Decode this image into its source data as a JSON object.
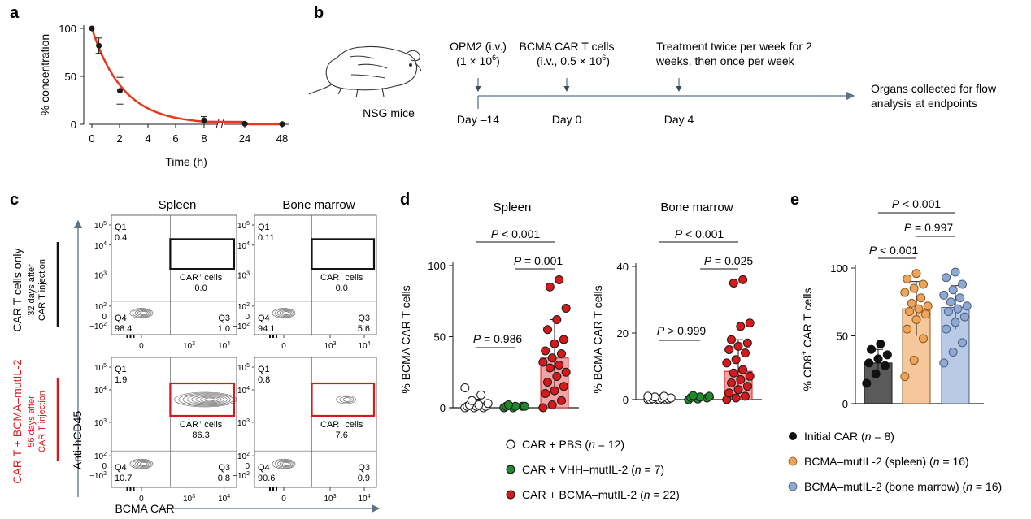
{
  "colors": {
    "ink": "#1a1a1a",
    "curve": "#e8391d",
    "red": "#d7191c",
    "red_fill": "#f4a3a5",
    "green": "#1f8a2b",
    "orange": "#f0a35a",
    "orange_fill": "#f6c79b",
    "blue": "#8fa9d3",
    "blue_fill": "#b8cae6",
    "black_fill": "#5a5a5a",
    "arrow": "#5f7186"
  },
  "panels": {
    "a": {
      "letter": "a",
      "ylabel": "% concentration",
      "xlabel": "Time (h)",
      "xticks": [
        "0",
        "2",
        "4",
        "6",
        "8",
        "24",
        "48"
      ],
      "yticks": [
        "0",
        "50",
        "100"
      ],
      "axis_break": "//"
    },
    "b": {
      "letter": "b",
      "mouse_label": "NSG mice",
      "event1_line1": "OPM2 (i.v.)",
      "event1_line2": "(1 × 10",
      "event1_sup": "6",
      "event1_end": ")",
      "event2_line1": "BCMA CAR T cells",
      "event2_line2": "(i.v., 0.5 × 10",
      "event2_sup": "6",
      "event2_end": ")",
      "event3_line1": "Treatment twice per week for 2",
      "event3_line2": "weeks, then once per week",
      "end_line1": "Organs collected for flow",
      "end_line2": "analysis at endpoints",
      "day1": "Day –14",
      "day2": "Day 0",
      "day3": "Day 4"
    },
    "c": {
      "letter": "c",
      "col1": "Spleen",
      "col2": "Bone marrow",
      "row1_label": "CAR T cells only",
      "row1_sub1": "32 days after",
      "row1_sub2": "CAR T injection",
      "row2_label": "CAR T + BCMA–mutIL-2",
      "row2_sub1": "56 days after",
      "row2_sub2": "CAR T injection",
      "yaxis": "Anti-hCD45",
      "xaxis": "BCMA CAR",
      "quadrant_q1": "Q1",
      "quadrant_q3": "Q3",
      "quadrant_q4": "Q4",
      "gate_label": "CAR",
      "gate_sup": "+",
      "gate_suffix": " cells",
      "tick_labels": {
        "y5": "10",
        "y5e": "5",
        "y4": "10",
        "y4e": "4",
        "y3": "10",
        "y3e": "3",
        "y2": "10",
        "y2e": "2",
        "y0": "0",
        "yn2": "−10",
        "yn2e": "2",
        "x0": "0",
        "x3": "10",
        "x3e": "3",
        "x4": "10",
        "x4e": "4"
      },
      "plots": [
        {
          "q1": "0.4",
          "gate": "0.0",
          "q4": "98.4",
          "q3": "1.0"
        },
        {
          "q1": "0.11",
          "gate": "0.0",
          "q4": "94.1",
          "q3": "5.6"
        },
        {
          "q1": "1.9",
          "gate": "86.3",
          "q4": "10.7",
          "q3": "0.8"
        },
        {
          "q1": "0.8",
          "gate": "7.6",
          "q4": "90.6",
          "q3": "0.9"
        }
      ]
    },
    "d": {
      "letter": "d",
      "left_title": "Spleen",
      "right_title": "Bone marrow",
      "ylabel": "% BCMA CAR T cells",
      "left_yticks": [
        "0",
        "50",
        "100"
      ],
      "right_yticks": [
        "0",
        "20",
        "40"
      ],
      "left_p_top": " < 0.001",
      "left_p_mid": " = 0.001",
      "left_p_low": " = 0.986",
      "right_p_top": " < 0.001",
      "right_p_mid": " = 0.025",
      "right_p_low": " > 0.999",
      "p_letter": "P",
      "legend": [
        {
          "label_pre": "CAR + PBS (",
          "n": "n",
          "label_post": " = 12)"
        },
        {
          "label_pre": "CAR + VHH–mutIL-2 (",
          "n": "n",
          "label_post": " = 7)"
        },
        {
          "label_pre": "CAR + BCMA–mutIL-2 (",
          "n": "n",
          "label_post": " = 22)"
        }
      ]
    },
    "e": {
      "letter": "e",
      "ylabel_pre": "% CD8",
      "ylabel_sup": "+",
      "ylabel_post": " CAR T cells",
      "yticks": [
        "0",
        "50",
        "100"
      ],
      "p_top": " < 0.001",
      "p_mid": " = 0.997",
      "p_low": " < 0.001",
      "p_letter": "P",
      "legend": [
        {
          "label_pre": "Initial CAR (",
          "n": "n",
          "label_post": " = 8)"
        },
        {
          "label_pre": "BCMA–mutIL-2 (spleen) (",
          "n": "n",
          "label_post": " = 16)"
        },
        {
          "label_pre": "BCMA–mutIL-2 (bone marrow) (",
          "n": "n",
          "label_post": " = 16)"
        }
      ]
    }
  },
  "chart_data": [
    {
      "id": "a",
      "type": "line",
      "xlabel": "Time (h)",
      "ylabel": "% concentration",
      "x": [
        0,
        0.5,
        2,
        8,
        24,
        48
      ],
      "y": [
        100,
        82,
        35,
        4,
        0.5,
        0.2
      ],
      "err": [
        0,
        8,
        14,
        4,
        1,
        0.5
      ],
      "ylim": [
        0,
        100
      ]
    },
    {
      "id": "d-spleen",
      "type": "bar",
      "ylabel": "% BCMA CAR T cells",
      "categories": [
        "CAR + PBS",
        "CAR + VHH–mutIL-2",
        "CAR + BCMA–mutIL-2"
      ],
      "values": [
        2,
        1,
        35
      ],
      "sd": [
        4,
        1,
        27
      ],
      "ylim": [
        0,
        100
      ],
      "points": [
        [
          0,
          0,
          0,
          1,
          1,
          1,
          2,
          2,
          3,
          5,
          9,
          14
        ],
        [
          0,
          0,
          1,
          1,
          1,
          1,
          2
        ],
        [
          0,
          2,
          5,
          10,
          12,
          15,
          18,
          22,
          25,
          28,
          30,
          32,
          35,
          38,
          40,
          45,
          48,
          55,
          62,
          70,
          85,
          90
        ]
      ]
    },
    {
      "id": "d-bone-marrow",
      "type": "bar",
      "ylabel": "% BCMA CAR T cells",
      "categories": [
        "CAR + PBS",
        "CAR + VHH–mutIL-2",
        "CAR + BCMA–mutIL-2"
      ],
      "values": [
        0.3,
        0.5,
        8.5
      ],
      "sd": [
        0.5,
        0.8,
        9.5
      ],
      "ylim": [
        0,
        40
      ],
      "points": [
        [
          0,
          0,
          0,
          0,
          0,
          0.2,
          0.3,
          0.4,
          0.5,
          0.8,
          1,
          1
        ],
        [
          0,
          0.2,
          0.5,
          0.6,
          0.8,
          1,
          1.2
        ],
        [
          0,
          0.5,
          1,
          2,
          3,
          4,
          5,
          6,
          7,
          8,
          9,
          11,
          12,
          14,
          15,
          16,
          17,
          18,
          22,
          23,
          35,
          36
        ]
      ]
    },
    {
      "id": "e",
      "type": "bar",
      "ylabel": "% CD8+ CAR T cells",
      "categories": [
        "Initial CAR",
        "BCMA–mutIL-2 (spleen)",
        "BCMA–mutIL-2 (bone marrow)"
      ],
      "values": [
        30,
        70,
        71
      ],
      "sd": [
        10,
        20,
        16
      ],
      "ylim": [
        0,
        100
      ],
      "points": [
        [
          15,
          22,
          28,
          30,
          33,
          36,
          40,
          44
        ],
        [
          20,
          32,
          48,
          55,
          62,
          66,
          68,
          70,
          72,
          74,
          78,
          82,
          85,
          88,
          92,
          96
        ],
        [
          30,
          38,
          45,
          55,
          60,
          64,
          68,
          70,
          72,
          75,
          78,
          80,
          84,
          88,
          93,
          97
        ]
      ]
    }
  ]
}
